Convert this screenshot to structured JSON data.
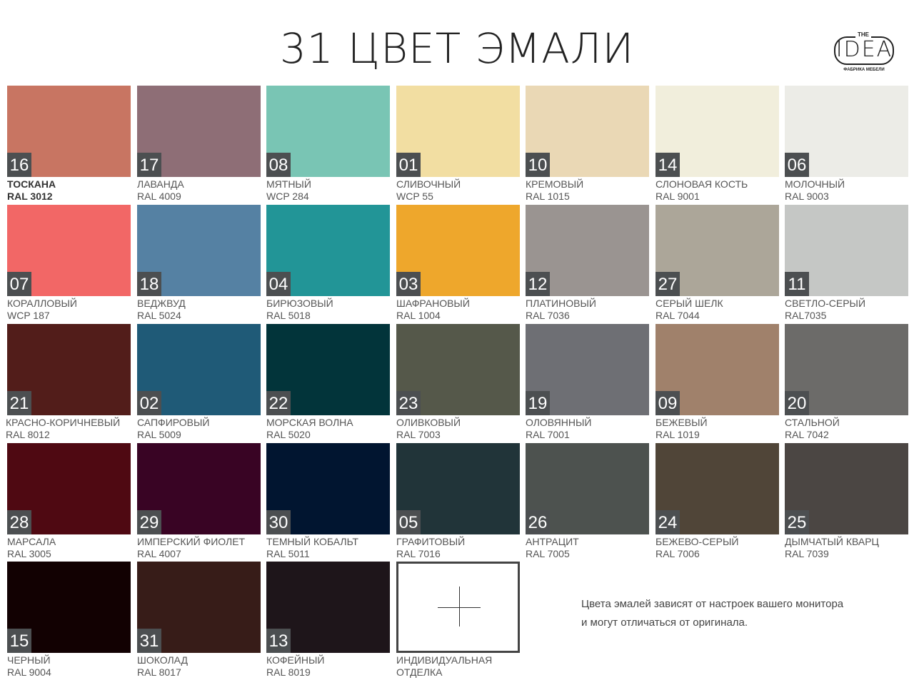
{
  "title": "31 ЦВЕТ ЭМАЛИ",
  "logo": {
    "the": "THE",
    "word": "IDEA",
    "sub": "ФАБРИКА МЕБЕЛИ"
  },
  "swatches": [
    {
      "num": "16",
      "name": "ТОСКАНА",
      "code": "RAL 3012",
      "color": "#c87562"
    },
    {
      "num": "17",
      "name": "ЛАВАНДА",
      "code": "RAL 4009",
      "color": "#8e6e76"
    },
    {
      "num": "08",
      "name": "МЯТНЫЙ",
      "code": "WCP 284",
      "color": "#79c5b4"
    },
    {
      "num": "01",
      "name": "СЛИВОЧНЫЙ",
      "code": "WCP 55",
      "color": "#f2dea2"
    },
    {
      "num": "10",
      "name": "КРЕМОВЫЙ",
      "code": "RAL 1015",
      "color": "#ead8b5"
    },
    {
      "num": "14",
      "name": "СЛОНОВАЯ КОСТЬ",
      "code": "RAL 9001",
      "color": "#f1eedc"
    },
    {
      "num": "06",
      "name": "МОЛОЧНЫЙ",
      "code": "RAL 9003",
      "color": "#ecece7"
    },
    {
      "num": "07",
      "name": "КОРАЛЛОВЫЙ",
      "code": "WCP 187",
      "color": "#f26766"
    },
    {
      "num": "18",
      "name": "ВЕДЖВУД",
      "code": "RAL 5024",
      "color": "#5581a3"
    },
    {
      "num": "04",
      "name": "БИРЮЗОВЫЙ",
      "code": "RAL 5018",
      "color": "#229597"
    },
    {
      "num": "03",
      "name": "ШАФРАНОВЫЙ",
      "code": "RAL 1004",
      "color": "#eea72c"
    },
    {
      "num": "12",
      "name": "ПЛАТИНОВЫЙ",
      "code": "RAL 7036",
      "color": "#9a9491"
    },
    {
      "num": "27",
      "name": "СЕРЫЙ ШЕЛК",
      "code": "RAL 7044",
      "color": "#aca699"
    },
    {
      "num": "11",
      "name": "СВЕТЛО-СЕРЫЙ",
      "code": "RAL7035",
      "color": "#c5c7c5"
    },
    {
      "num": "21",
      "name": "КРАСНО-КОРИЧНЕВЫЙ",
      "code": "RAL 8012",
      "color": "#521d1a"
    },
    {
      "num": "02",
      "name": "САПФИРОВЫЙ",
      "code": "RAL 5009",
      "color": "#1f5a77"
    },
    {
      "num": "22",
      "name": "МОРСКАЯ ВОЛНА",
      "code": "RAL 5020",
      "color": "#02343a"
    },
    {
      "num": "23",
      "name": "ОЛИВКОВЫЙ",
      "code": "RAL 7003",
      "color": "#55584a"
    },
    {
      "num": "19",
      "name": "ОЛОВЯННЫЙ",
      "code": "RAL 7001",
      "color": "#6e6f74"
    },
    {
      "num": "09",
      "name": "БЕЖЕВЫЙ",
      "code": "RAL 1019",
      "color": "#a0816b"
    },
    {
      "num": "20",
      "name": "СТАЛЬНОЙ",
      "code": "RAL 7042",
      "color": "#6c6b69"
    },
    {
      "num": "28",
      "name": "МАРСАЛА",
      "code": "RAL 3005",
      "color": "#4f0912"
    },
    {
      "num": "29",
      "name": "ИМПЕРСКИЙ ФИОЛЕТ",
      "code": "RAL 4007",
      "color": "#390424"
    },
    {
      "num": "30",
      "name": "ТЕМНЫЙ КОБАЛЬТ",
      "code": "RAL 5011",
      "color": "#011530"
    },
    {
      "num": "05",
      "name": "ГРАФИТОВЫЙ",
      "code": "RAL 7016",
      "color": "#213439"
    },
    {
      "num": "26",
      "name": "АНТРАЦИТ",
      "code": "RAL 7005",
      "color": "#4d524f"
    },
    {
      "num": "24",
      "name": "БЕЖЕВО-СЕРЫЙ",
      "code": "RAL 7006",
      "color": "#504538"
    },
    {
      "num": "25",
      "name": "ДЫМЧАТЫЙ КВАРЦ",
      "code": "RAL 7039",
      "color": "#4b4643"
    },
    {
      "num": "15",
      "name": "ЧЕРНЫЙ",
      "code": "RAL 9004",
      "color": "#120102"
    },
    {
      "num": "31",
      "name": "ШОКОЛАД",
      "code": "RAL 8017",
      "color": "#371c18"
    },
    {
      "num": "13",
      "name": "КОФЕЙНЫЙ",
      "code": "RAL 8019",
      "color": "#1e151a"
    }
  ],
  "custom": {
    "line1": "ИНДИВИДУАЛЬНАЯ",
    "line2": "ОТДЕЛКА"
  },
  "note": {
    "line1": "Цвета эмалей зависят от настроек  вашего монитора",
    "line2": "и могут отличаться  от оригинала."
  }
}
